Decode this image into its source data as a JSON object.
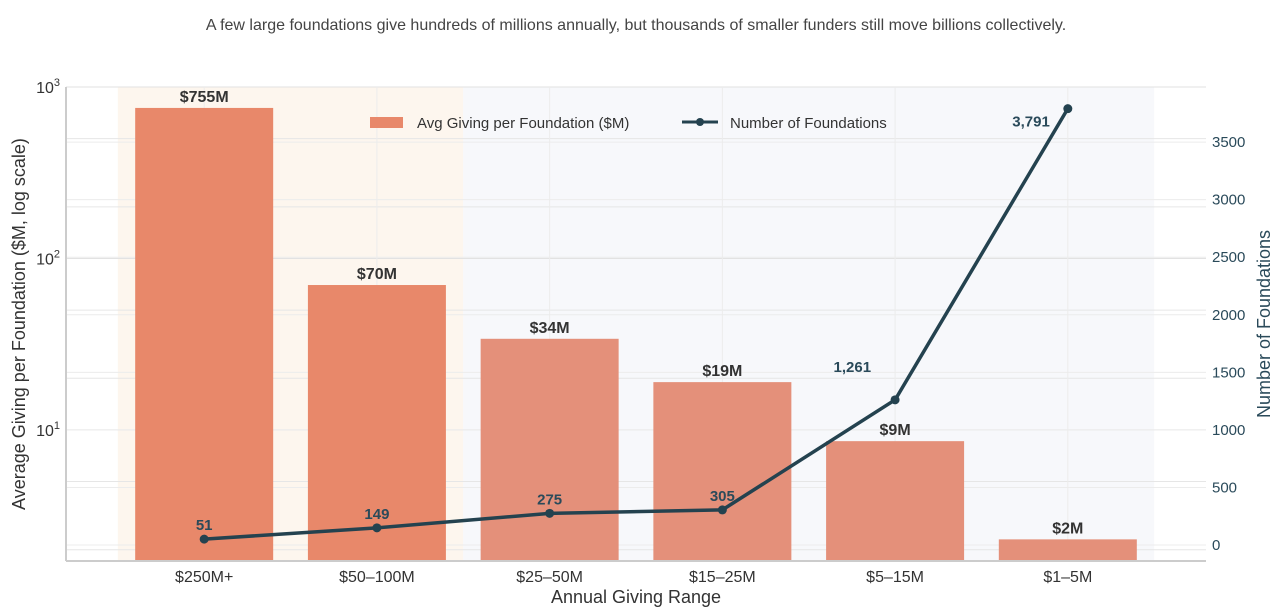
{
  "chart_data": {
    "type": "bar+line",
    "title": "A few large foundations give hundreds of millions annually, but thousands of smaller funders still move billions collectively.",
    "xlabel": "Annual Giving Range",
    "ylabel": "Average Giving per Foundation ($M, log scale)",
    "ylabel_right": "Number of Foundations",
    "categories": [
      "$250M+",
      "$50–100M",
      "$25–50M",
      "$15–25M",
      "$5–15M",
      "$1–5M"
    ],
    "yscale": "log",
    "ylim": [
      1.72,
      1000
    ],
    "y_ticks": [
      {
        "value": 10,
        "label": "10",
        "exp": "1"
      },
      {
        "value": 100,
        "label": "10",
        "exp": "2"
      },
      {
        "value": 1000,
        "label": "10",
        "exp": "3"
      }
    ],
    "ylim_right": [
      -139,
      3979
    ],
    "y_ticks_right": [
      "0",
      "500",
      "1000",
      "1500",
      "2000",
      "2500",
      "3000",
      "3500"
    ],
    "grid": true,
    "legend_position": "top-center",
    "series": [
      {
        "name": "Avg Giving per Foundation ($M)",
        "type": "bar",
        "axis": "left",
        "values": [
          755,
          70,
          34,
          19,
          8.6,
          2.3
        ],
        "labels": [
          "$755M",
          "$70M",
          "$34M",
          "$19M",
          "$9M",
          "$2M"
        ],
        "colors": [
          "#E8886A",
          "#E8886A",
          "#E4907A",
          "#E4907A",
          "#E4907A",
          "#E4907A"
        ]
      },
      {
        "name": "Number of Foundations",
        "type": "line",
        "axis": "right",
        "values": [
          51,
          149,
          275,
          305,
          1261,
          3791
        ],
        "labels": [
          "51",
          "149",
          "275",
          "305",
          "1,261",
          "3,791"
        ],
        "color": "#24424F"
      }
    ],
    "bands": [
      {
        "from_category": 0,
        "to_category": 1,
        "color": "#FDF6EE"
      },
      {
        "from_category": 2,
        "to_category": 5,
        "color": "#F7F8FB"
      }
    ]
  }
}
